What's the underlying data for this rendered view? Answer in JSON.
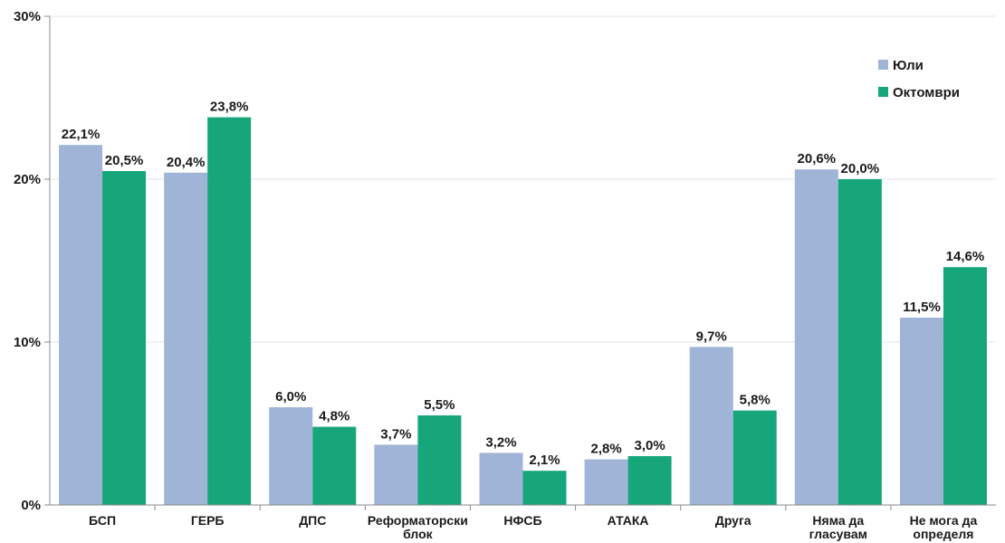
{
  "chart_data": {
    "type": "bar",
    "title": "",
    "xlabel": "",
    "ylabel": "",
    "ylim": [
      0,
      30
    ],
    "yticks": [
      "0%",
      "10%",
      "20%",
      "30%"
    ],
    "ytick_values": [
      0,
      10,
      20,
      30
    ],
    "grid": true,
    "legend_position": "top-right",
    "categories": [
      [
        "БСП"
      ],
      [
        "ГЕРБ"
      ],
      [
        "ДПС"
      ],
      [
        "Реформаторски",
        "блок"
      ],
      [
        "НФСБ"
      ],
      [
        "АТАКА"
      ],
      [
        "Друга"
      ],
      [
        "Няма да",
        "гласувам"
      ],
      [
        "Не мога да",
        "определя"
      ]
    ],
    "series": [
      {
        "name": "Юли",
        "color": "#9fb4d6",
        "values": [
          22.1,
          20.4,
          6.0,
          3.7,
          3.2,
          2.8,
          9.7,
          20.6,
          11.5
        ],
        "labels": [
          "22,1%",
          "20,4%",
          "6,0%",
          "3,7%",
          "3,2%",
          "2,8%",
          "9,7%",
          "20,6%",
          "11,5%"
        ]
      },
      {
        "name": "Октомври",
        "color": "#16a67a",
        "values": [
          20.5,
          23.8,
          4.8,
          5.5,
          2.1,
          3.0,
          5.8,
          20.0,
          14.6
        ],
        "labels": [
          "20,5%",
          "23,8%",
          "4,8%",
          "5,5%",
          "2,1%",
          "3,0%",
          "5,8%",
          "20,0%",
          "14,6%"
        ]
      }
    ]
  }
}
